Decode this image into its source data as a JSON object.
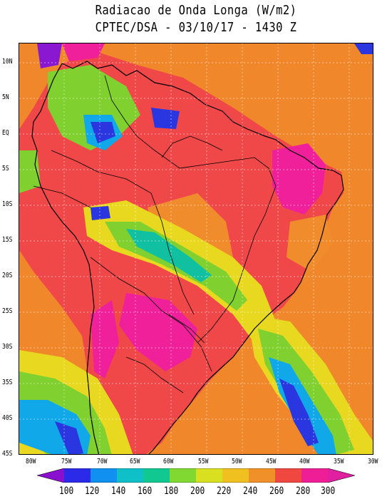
{
  "title_line1": "Radiacao de Onda Longa (W/m2)",
  "title_line2": "CPTEC/DSA - 03/10/17 - 1430 Z",
  "lat_labels": [
    "10N",
    "5N",
    "EQ",
    "5S",
    "10S",
    "15S",
    "20S",
    "25S",
    "30S",
    "35S",
    "40S",
    "45S"
  ],
  "lon_labels": [
    "80W",
    "75W",
    "70W",
    "65W",
    "60W",
    "55W",
    "50W",
    "45W",
    "40W",
    "35W",
    "30W"
  ],
  "colorbar": {
    "values": [
      "100",
      "120",
      "140",
      "160",
      "180",
      "200",
      "220",
      "240",
      "260",
      "280",
      "300"
    ],
    "colors": [
      "#8a10d0",
      "#2a2ae8",
      "#1090f0",
      "#10c0c8",
      "#10c890",
      "#80d830",
      "#d8e020",
      "#f0c020",
      "#f09028",
      "#f04840",
      "#f01e96",
      "#e020a0"
    ]
  },
  "field_colors": {
    "background": "#f0882b",
    "land_warm": "#f04848",
    "hot": "#f0209a",
    "mid_orange": "#f08c2c",
    "yellow": "#e8d820",
    "green": "#80d030",
    "teal": "#10c0a0",
    "cyan": "#10a8e8",
    "blue": "#2a36e0",
    "purple": "#8a18d0",
    "coast_lines": "#000000",
    "grid_lines": "#ffffff"
  }
}
